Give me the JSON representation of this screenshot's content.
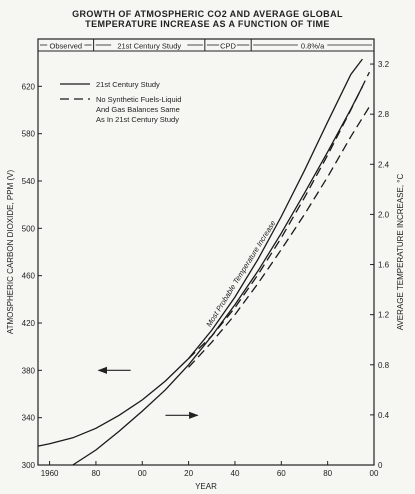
{
  "title_line1": "GROWTH OF ATMOSPHERIC CO2 AND AVERAGE GLOBAL",
  "title_line2": "TEMPERATURE INCREASE AS A FUNCTION OF TIME",
  "chart_data": {
    "type": "line",
    "xlabel": "YEAR",
    "ylabel_left": "ATMOSPHERIC CARBON DIOXIDE, PPM (V)",
    "ylabel_right": "AVERAGE TEMPERATURE INCREASE, °C",
    "x_tick_labels": [
      "1960",
      "80",
      "00",
      "20",
      "40",
      "60",
      "80",
      "00"
    ],
    "x_range": [
      1955,
      2100
    ],
    "y_left_range": [
      300,
      660
    ],
    "y_left_ticks": [
      "300",
      "340",
      "380",
      "420",
      "460",
      "500",
      "540",
      "580",
      "620"
    ],
    "y_right_range": [
      0,
      3.4
    ],
    "y_right_ticks": [
      "0",
      "0.4",
      "0.8",
      "1.2",
      "1.6",
      "2.0",
      "2.4",
      "2.8",
      "3.2"
    ],
    "grid": false,
    "period_labels": [
      {
        "label": "Observed",
        "from": 1955,
        "to": 1979
      },
      {
        "label": "21st Century Study",
        "from": 1979,
        "to": 2027
      },
      {
        "label": "CPD",
        "from": 2027,
        "to": 2047
      },
      {
        "label": "0.8%/a",
        "from": 2047,
        "to": 2100
      }
    ],
    "legend_position": "top-left",
    "legend": [
      {
        "style": "solid",
        "text": [
          "21st Century Study"
        ]
      },
      {
        "style": "dashed",
        "text": [
          "No Synthetic Fuels-Liquid",
          "And Gas Balances Same",
          "As In 21st Century Study"
        ]
      }
    ],
    "annotation": "Most Probable Temperature Increase",
    "series": [
      {
        "name": "21st Century Study",
        "axis": "left",
        "style": "solid",
        "x": [
          1955,
          1960,
          1970,
          1980,
          1990,
          2000,
          2010,
          2020,
          2030,
          2040,
          2050,
          2060,
          2070,
          2080,
          2090,
          2095
        ],
        "y": [
          316,
          318,
          323,
          331,
          342,
          355,
          371,
          390,
          414,
          442,
          474,
          510,
          549,
          590,
          630,
          643
        ]
      },
      {
        "name": "No Synthetic Fuels-Liquid And Gas Balances Same As In 21st Century Study",
        "axis": "left",
        "style": "dashed",
        "x": [
          2020,
          2030,
          2040,
          2050,
          2060,
          2070,
          2080,
          2090,
          2098
        ],
        "y": [
          390,
          409,
          433,
          461,
          492,
          526,
          562,
          600,
          632
        ]
      },
      {
        "name": "Temperature (21st Century Study)",
        "axis": "right",
        "style": "solid",
        "x": [
          1970,
          1980,
          1990,
          2000,
          2010,
          2020,
          2030,
          2040,
          2050,
          2060,
          2070,
          2080,
          2090,
          2095
        ],
        "y": [
          0.0,
          0.12,
          0.27,
          0.43,
          0.6,
          0.8,
          1.03,
          1.28,
          1.55,
          1.85,
          2.17,
          2.5,
          2.84,
          3.02
        ]
      },
      {
        "name": "Temperature (No Synthetic Fuels)",
        "axis": "right",
        "style": "dashed",
        "x": [
          2020,
          2030,
          2040,
          2050,
          2060,
          2070,
          2080,
          2090,
          2098
        ],
        "y": [
          0.78,
          0.98,
          1.2,
          1.45,
          1.72,
          2.0,
          2.3,
          2.62,
          2.86
        ]
      }
    ],
    "arrows": [
      {
        "points_to": "left",
        "x": 1995,
        "y_axis": "left",
        "y": 380
      },
      {
        "points_to": "right",
        "x": 2010,
        "y_axis": "left",
        "y": 342
      }
    ]
  }
}
